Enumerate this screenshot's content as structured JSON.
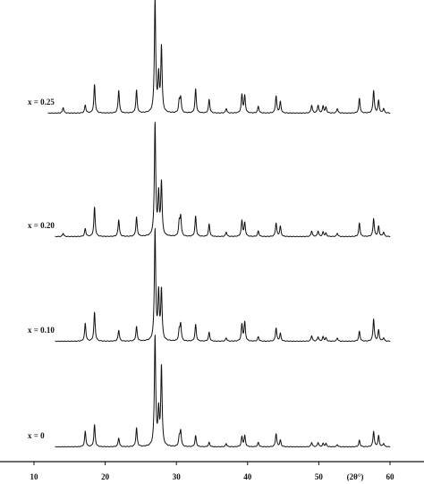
{
  "chart_data": {
    "type": "line",
    "title": "",
    "xlabel": "(2θ°)",
    "ylabel": "",
    "xlim": [
      10,
      60
    ],
    "x_ticks": [
      10,
      20,
      30,
      40,
      50,
      60
    ],
    "x_tick_labels": [
      "10",
      "20",
      "30",
      "40",
      "50",
      "60"
    ],
    "grid": false,
    "legend": "none",
    "line_color": "#111111",
    "series": [
      {
        "name": "x = 0.25",
        "peaks": [
          [
            14.1,
            0.05
          ],
          [
            17.2,
            0.07
          ],
          [
            18.5,
            0.25
          ],
          [
            21.9,
            0.2
          ],
          [
            24.4,
            0.2
          ],
          [
            27.0,
            1.0
          ],
          [
            27.5,
            0.31
          ],
          [
            27.9,
            0.57
          ],
          [
            30.4,
            0.1
          ],
          [
            30.6,
            0.13
          ],
          [
            32.7,
            0.21
          ],
          [
            34.6,
            0.12
          ],
          [
            37.0,
            0.04
          ],
          [
            39.2,
            0.16
          ],
          [
            39.6,
            0.15
          ],
          [
            41.5,
            0.06
          ],
          [
            44.0,
            0.15
          ],
          [
            44.6,
            0.1
          ],
          [
            49.0,
            0.07
          ],
          [
            49.9,
            0.07
          ],
          [
            50.6,
            0.06
          ],
          [
            51.0,
            0.05
          ],
          [
            52.6,
            0.04
          ],
          [
            55.7,
            0.13
          ],
          [
            57.7,
            0.2
          ],
          [
            58.4,
            0.11
          ],
          [
            59.1,
            0.04
          ]
        ]
      },
      {
        "name": "x = 0.20",
        "peaks": [
          [
            14.1,
            0.03
          ],
          [
            17.2,
            0.07
          ],
          [
            18.5,
            0.26
          ],
          [
            21.9,
            0.15
          ],
          [
            24.4,
            0.17
          ],
          [
            27.0,
            1.0
          ],
          [
            27.5,
            0.36
          ],
          [
            27.9,
            0.47
          ],
          [
            30.4,
            0.12
          ],
          [
            30.6,
            0.17
          ],
          [
            32.7,
            0.18
          ],
          [
            34.6,
            0.11
          ],
          [
            37.0,
            0.04
          ],
          [
            39.2,
            0.14
          ],
          [
            39.6,
            0.12
          ],
          [
            41.5,
            0.05
          ],
          [
            44.0,
            0.12
          ],
          [
            44.6,
            0.09
          ],
          [
            49.0,
            0.05
          ],
          [
            49.9,
            0.05
          ],
          [
            50.6,
            0.04
          ],
          [
            51.0,
            0.03
          ],
          [
            52.6,
            0.03
          ],
          [
            55.7,
            0.12
          ],
          [
            57.7,
            0.16
          ],
          [
            58.4,
            0.09
          ],
          [
            59.1,
            0.04
          ]
        ]
      },
      {
        "name": "x = 0.10",
        "peaks": [
          [
            17.2,
            0.16
          ],
          [
            18.5,
            0.26
          ],
          [
            21.9,
            0.1
          ],
          [
            24.4,
            0.13
          ],
          [
            27.0,
            1.0
          ],
          [
            27.5,
            0.42
          ],
          [
            27.9,
            0.45
          ],
          [
            30.4,
            0.09
          ],
          [
            30.6,
            0.15
          ],
          [
            32.7,
            0.15
          ],
          [
            34.6,
            0.08
          ],
          [
            37.0,
            0.03
          ],
          [
            39.2,
            0.15
          ],
          [
            39.6,
            0.17
          ],
          [
            41.5,
            0.04
          ],
          [
            44.0,
            0.12
          ],
          [
            44.6,
            0.07
          ],
          [
            49.0,
            0.05
          ],
          [
            49.9,
            0.04
          ],
          [
            50.6,
            0.04
          ],
          [
            51.0,
            0.03
          ],
          [
            52.6,
            0.03
          ],
          [
            55.7,
            0.09
          ],
          [
            57.7,
            0.2
          ],
          [
            58.4,
            0.1
          ],
          [
            59.1,
            0.03
          ]
        ]
      },
      {
        "name": "x = 0",
        "peaks": [
          [
            17.2,
            0.14
          ],
          [
            18.5,
            0.2
          ],
          [
            21.9,
            0.08
          ],
          [
            24.4,
            0.17
          ],
          [
            27.0,
            1.0
          ],
          [
            27.5,
            0.31
          ],
          [
            27.9,
            0.72
          ],
          [
            30.4,
            0.08
          ],
          [
            30.6,
            0.14
          ],
          [
            32.7,
            0.1
          ],
          [
            34.6,
            0.04
          ],
          [
            37.0,
            0.03
          ],
          [
            39.2,
            0.09
          ],
          [
            39.6,
            0.1
          ],
          [
            41.5,
            0.04
          ],
          [
            44.0,
            0.12
          ],
          [
            44.6,
            0.06
          ],
          [
            49.0,
            0.04
          ],
          [
            49.9,
            0.04
          ],
          [
            50.6,
            0.03
          ],
          [
            51.0,
            0.03
          ],
          [
            52.6,
            0.02
          ],
          [
            55.7,
            0.06
          ],
          [
            57.7,
            0.14
          ],
          [
            58.4,
            0.1
          ],
          [
            59.1,
            0.03
          ]
        ]
      }
    ]
  }
}
